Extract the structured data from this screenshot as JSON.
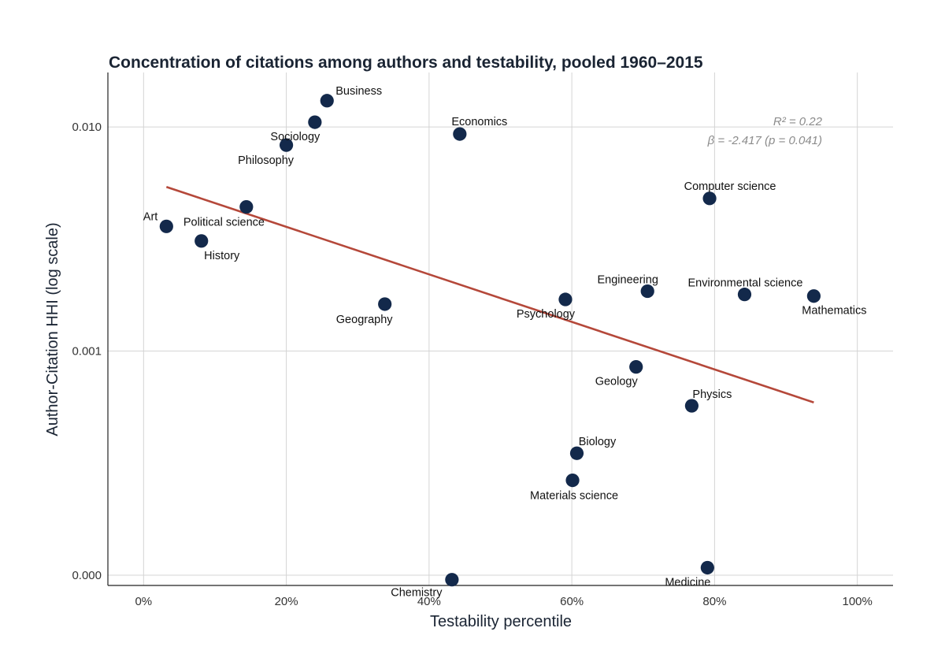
{
  "chart_data": {
    "type": "scatter",
    "title": "Concentration of citations among authors and testability, pooled 1960–2015",
    "xlabel": "Testability percentile",
    "ylabel": "Author-Citation HHI (log scale)",
    "x_ticks": [
      {
        "value": 0,
        "label": "0%"
      },
      {
        "value": 20,
        "label": "20%"
      },
      {
        "value": 40,
        "label": "40%"
      },
      {
        "value": 60,
        "label": "60%"
      },
      {
        "value": 80,
        "label": "80%"
      },
      {
        "value": 100,
        "label": "100%"
      }
    ],
    "y_ticks": [
      {
        "value": 0.0001,
        "label": "0.000"
      },
      {
        "value": 0.001,
        "label": "0.001"
      },
      {
        "value": 0.01,
        "label": "0.010"
      }
    ],
    "y_scale": "log",
    "xlim": [
      -5,
      105
    ],
    "ylim": [
      9e-05,
      0.0175
    ],
    "grid": true,
    "colors": {
      "points": "#13294b",
      "fit_line": "#b5483a",
      "annotation": "#8c8c8c"
    },
    "points": [
      {
        "name": "Business",
        "x": 25.7,
        "y": 0.0131
      },
      {
        "name": "Sociology",
        "x": 24.0,
        "y": 0.0105
      },
      {
        "name": "Philosophy",
        "x": 20.0,
        "y": 0.0083
      },
      {
        "name": "Economics",
        "x": 44.3,
        "y": 0.0093
      },
      {
        "name": "Art",
        "x": 3.2,
        "y": 0.0036
      },
      {
        "name": "Political science",
        "x": 14.4,
        "y": 0.0044
      },
      {
        "name": "History",
        "x": 8.1,
        "y": 0.0031
      },
      {
        "name": "Geography",
        "x": 33.8,
        "y": 0.00162
      },
      {
        "name": "Computer science",
        "x": 79.3,
        "y": 0.0048
      },
      {
        "name": "Psychology",
        "x": 59.1,
        "y": 0.0017
      },
      {
        "name": "Engineering",
        "x": 70.6,
        "y": 0.00185
      },
      {
        "name": "Environmental science",
        "x": 84.2,
        "y": 0.00179
      },
      {
        "name": "Mathematics",
        "x": 93.9,
        "y": 0.00176
      },
      {
        "name": "Geology",
        "x": 69.0,
        "y": 0.00085
      },
      {
        "name": "Physics",
        "x": 76.8,
        "y": 0.00057
      },
      {
        "name": "Biology",
        "x": 60.7,
        "y": 0.00035
      },
      {
        "name": "Materials science",
        "x": 60.1,
        "y": 0.000265
      },
      {
        "name": "Medicine",
        "x": 79.0,
        "y": 0.000108
      },
      {
        "name": "Chemistry",
        "x": 43.2,
        "y": 9.55e-05
      }
    ],
    "fit_line": {
      "x": [
        3.2,
        93.9
      ],
      "y": [
        0.0054,
        0.00059
      ]
    },
    "annotations": {
      "r2": "R² = 0.22",
      "beta": "β = -2.417 (p = 0.041)"
    }
  }
}
